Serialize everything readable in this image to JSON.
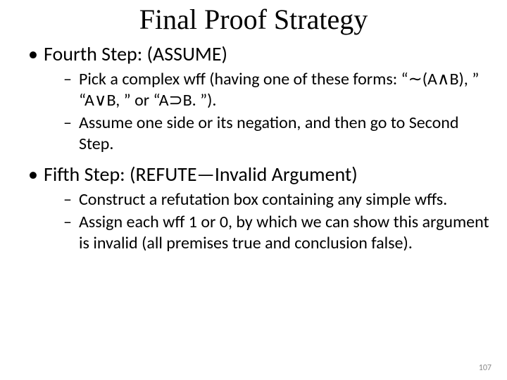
{
  "title": "Final Proof Strategy",
  "bullets": [
    {
      "text": "Fourth Step: (ASSUME)",
      "sub": [
        "Pick a complex wff (having one of these forms: “∼(A∧B), ” “A∨B, ” or “A⊃B. ”).",
        "Assume one side or its negation, and then go to Second Step."
      ]
    },
    {
      "text": "Fifth Step: (REFUTE—Invalid Argument)",
      "sub": [
        "Construct a refutation box containing any simple wffs.",
        "Assign each wff 1 or 0, by which we can show this argument is invalid (all premises true and conclusion false)."
      ]
    }
  ],
  "page_number": "107"
}
